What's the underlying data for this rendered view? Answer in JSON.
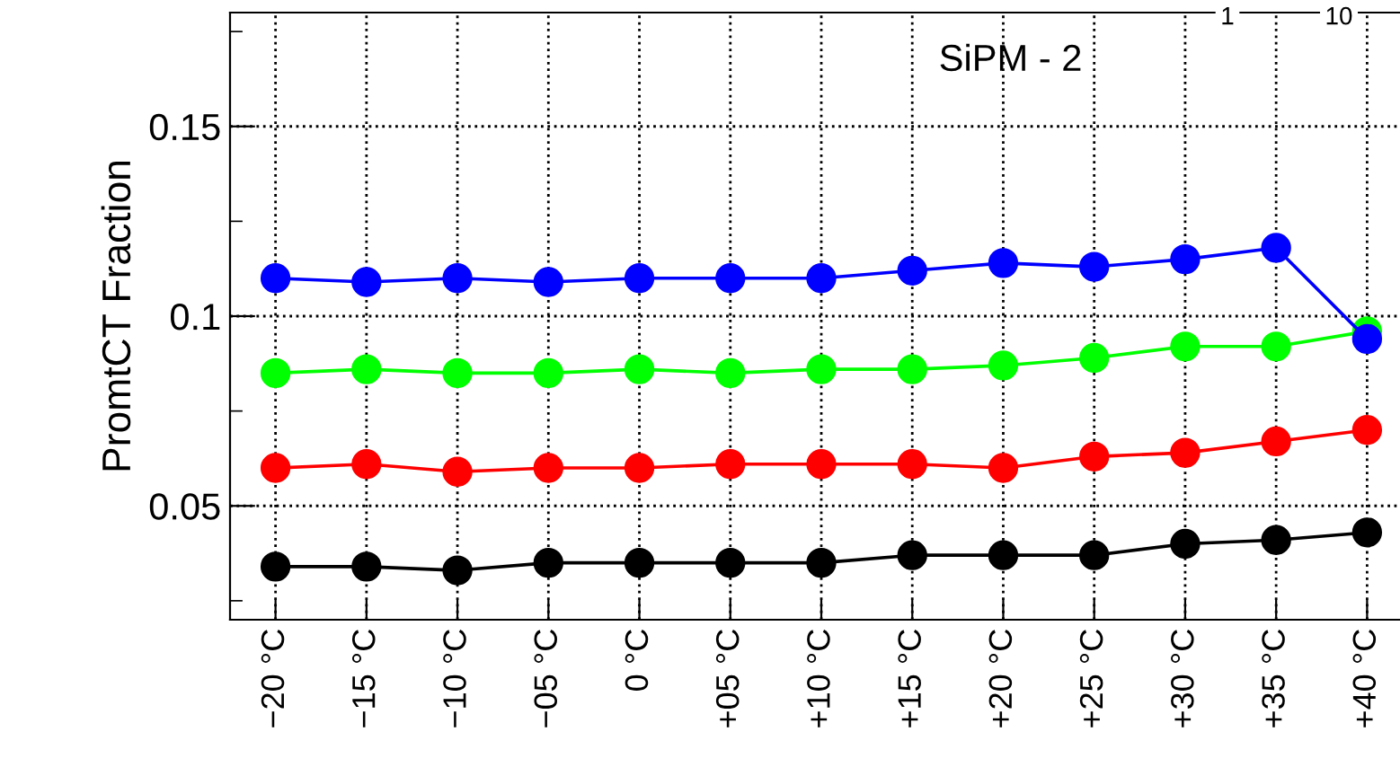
{
  "chart_data": {
    "type": "line",
    "title": "SiPM - 2",
    "ylabel": "PromtCT Fraction",
    "categories": [
      "−20 °C",
      "−15 °C",
      "−10 °C",
      "−05 °C",
      "0 °C",
      "+05 °C",
      "+10 °C",
      "+15 °C",
      "+20 °C",
      "+25 °C",
      "+30 °C",
      "+35 °C",
      "+40 °C"
    ],
    "series": [
      {
        "color": "#0000ff",
        "values": [
          0.11,
          0.109,
          0.11,
          0.109,
          0.11,
          0.11,
          0.11,
          0.112,
          0.114,
          0.113,
          0.115,
          0.118,
          0.094
        ]
      },
      {
        "color": "#00ff00",
        "values": [
          0.085,
          0.086,
          0.085,
          0.085,
          0.086,
          0.085,
          0.086,
          0.086,
          0.087,
          0.089,
          0.092,
          0.092,
          0.096
        ]
      },
      {
        "color": "#ff0000",
        "values": [
          0.06,
          0.061,
          0.059,
          0.06,
          0.06,
          0.061,
          0.061,
          0.061,
          0.06,
          0.063,
          0.064,
          0.067,
          0.07
        ]
      },
      {
        "color": "#000000",
        "values": [
          0.034,
          0.034,
          0.033,
          0.035,
          0.035,
          0.035,
          0.035,
          0.037,
          0.037,
          0.037,
          0.04,
          0.041,
          0.043
        ]
      }
    ],
    "ylim": [
      0.02,
      0.18
    ],
    "yticks": [
      {
        "value": 0.025,
        "label": null
      },
      0.05,
      {
        "value": 0.075,
        "label": null
      },
      {
        "value": 0.1,
        "label": "0.1"
      },
      {
        "value": 0.125,
        "label": null
      },
      0.15,
      {
        "value": 0.175,
        "label": null
      }
    ],
    "grid": true,
    "marker": "circle",
    "line_style": "solid",
    "annotations": [
      "1",
      "10"
    ]
  }
}
